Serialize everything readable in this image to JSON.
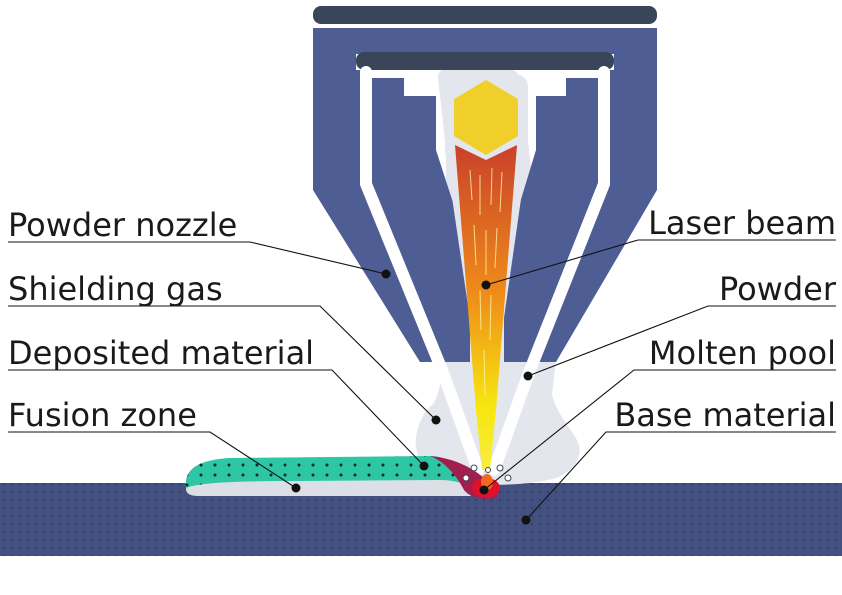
{
  "labels": {
    "powder_nozzle": "Powder nozzle",
    "shielding_gas": "Shielding gas",
    "deposited_material": "Deposited material",
    "fusion_zone": "Fusion zone",
    "laser_beam": "Laser beam",
    "powder": "Powder",
    "molten_pool": "Molten pool",
    "base_material": "Base material"
  },
  "colors": {
    "nozzle": "#4e5d94",
    "nozzle_dark": "#3b4559",
    "gas": "#e3e6ec",
    "laser_source": "#f1cf2b",
    "beam_top": "#c9412b",
    "beam_bottom": "#f6e60f",
    "deposit": "#2ec7a5",
    "fusion": "#a11f4f",
    "molten": "#e0112a",
    "base": "#44507f",
    "powder_particle": "#ffffff"
  },
  "icons": {
    "laser_source": "hexagon-icon"
  }
}
